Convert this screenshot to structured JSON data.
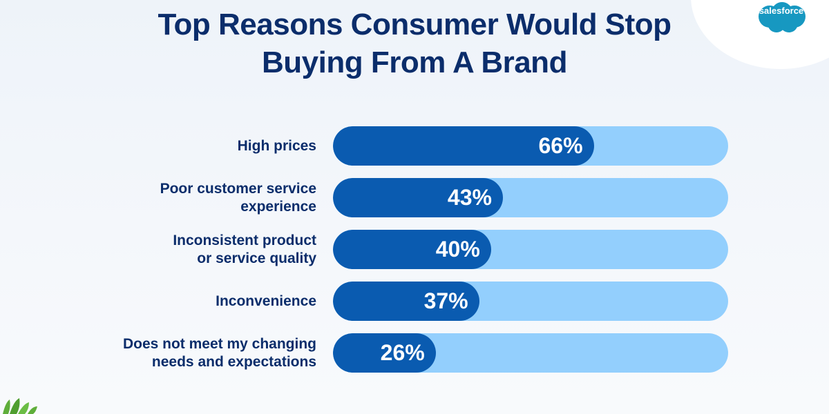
{
  "brand": {
    "logo_text": "salesforce",
    "logo_color": "#1798c1"
  },
  "colors": {
    "title": "#0b2d6b",
    "bar_fill": "#0a5bb0",
    "bar_track": "#93cffd",
    "value_text": "#ffffff"
  },
  "chart_data": {
    "type": "bar",
    "orientation": "horizontal",
    "title": "Top Reasons Consumer Would Stop Buying From A Brand",
    "categories": [
      [
        "High prices"
      ],
      [
        "Poor customer service",
        "experience"
      ],
      [
        "Inconsistent product",
        "or service quality"
      ],
      [
        "Inconvenience"
      ],
      [
        "Does not meet my changing",
        "needs and expectations"
      ]
    ],
    "values": [
      66,
      43,
      40,
      37,
      26
    ],
    "value_labels": [
      "66%",
      "43%",
      "40%",
      "37%",
      "26%"
    ],
    "xlim": [
      0,
      100
    ],
    "unit": "%",
    "grid": false,
    "legend": "none"
  }
}
